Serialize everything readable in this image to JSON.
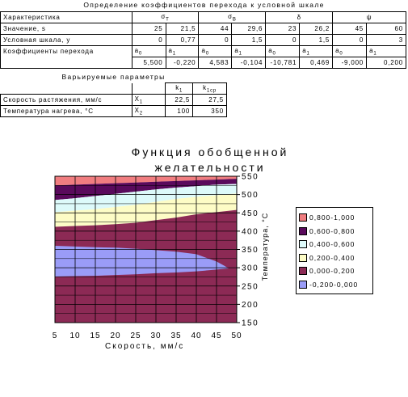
{
  "top_table": {
    "title": "Определение коэффициентов перехода к условной шкале",
    "header": {
      "label": "Характеристика",
      "col1": "σT",
      "col2": "σB",
      "col3": "δ",
      "col4": "ψ"
    },
    "row_values": {
      "label": "Значение, s",
      "cells": [
        "25",
        "21,5",
        "44",
        "29,6",
        "23",
        "26,2",
        "45",
        "60"
      ]
    },
    "row_scale": {
      "label": "Условная шкала, y",
      "cells": [
        "0",
        "0,77",
        "0",
        "1,5",
        "0",
        "1,5",
        "0",
        "3"
      ]
    },
    "row_coef": {
      "label": "Коэффициенты перехода",
      "cells": [
        "a0",
        "a1",
        "a0",
        "a1",
        "a0",
        "a1",
        "a0",
        "a1"
      ]
    },
    "row_coef_vals": {
      "cells": [
        "5,500",
        "-0,220",
        "4,583",
        "-0,104",
        "-10,781",
        "0,469",
        "-9,000",
        "0,200"
      ]
    }
  },
  "params_table": {
    "title": "Варьируемые параметры",
    "header": [
      "k1",
      "k1cp"
    ],
    "rows": [
      {
        "label": "Скорость растяжения, мм/с",
        "var": "X1",
        "v1": "22,5",
        "v2": "27,5"
      },
      {
        "label": "Температура нагрева, °С",
        "var": "X2",
        "v1": "100",
        "v2": "350"
      }
    ]
  },
  "chart_data": {
    "type": "contour",
    "title": "Функция обобщенной желательности",
    "xlabel": "Скорость, мм/с",
    "ylabel": "Температура, °С",
    "x_ticks": [
      "5",
      "10",
      "15",
      "20",
      "25",
      "30",
      "35",
      "40",
      "45",
      "50"
    ],
    "y_ticks": [
      "150",
      "200",
      "250",
      "300",
      "350",
      "400",
      "450",
      "500",
      "550"
    ],
    "xlim": [
      5,
      50
    ],
    "ylim": [
      150,
      550
    ],
    "grid": true,
    "legend_position": "right",
    "legend": [
      {
        "label": "0,800-1,000",
        "color": "#f07d80"
      },
      {
        "label": "0,600-0,800",
        "color": "#5a0a5c"
      },
      {
        "label": "0,400-0,600",
        "color": "#ddfafa"
      },
      {
        "label": "0,200-0,400",
        "color": "#fdfcc6"
      },
      {
        "label": "0,000-0,200",
        "color": "#8c2a55"
      },
      {
        "label": "-0,200-0,000",
        "color": "#9a9cf7"
      }
    ],
    "bands": [
      {
        "range": "0,800-1,000",
        "upper_y": [
          550,
          550,
          550,
          550,
          550,
          550,
          550,
          550,
          550,
          550
        ],
        "lower_y": [
          525,
          527,
          529,
          531,
          533,
          535,
          537,
          539,
          541,
          543
        ]
      },
      {
        "range": "0,600-0,800",
        "upper_y": [
          525,
          527,
          529,
          531,
          533,
          535,
          537,
          539,
          541,
          543
        ],
        "lower_y": [
          485,
          490,
          496,
          502,
          508,
          514,
          519,
          523,
          527,
          529
        ]
      },
      {
        "range": "0,400-0,600",
        "upper_y": [
          485,
          490,
          496,
          502,
          508,
          514,
          519,
          523,
          527,
          529
        ],
        "lower_y": [
          452,
          456,
          460,
          466,
          472,
          480,
          488,
          494,
          498,
          503
        ]
      },
      {
        "range": "0,200-0,400",
        "upper_y": [
          452,
          456,
          460,
          466,
          472,
          480,
          488,
          494,
          498,
          503
        ],
        "lower_y": [
          412,
          414,
          416,
          419,
          423,
          430,
          437,
          446,
          452,
          458
        ]
      },
      {
        "range": "0,000-0,200",
        "upper_y": [
          412,
          414,
          416,
          419,
          423,
          430,
          437,
          446,
          452,
          458
        ],
        "lower_y": [
          150,
          150,
          150,
          150,
          150,
          150,
          150,
          150,
          150,
          150
        ]
      }
    ],
    "negative_region": {
      "range": "-0,200-0,000",
      "x": [
        5,
        10,
        15,
        20,
        25,
        30,
        35,
        40,
        45,
        47,
        48,
        45,
        40,
        35,
        30,
        25,
        20,
        15,
        10,
        5
      ],
      "y": [
        360,
        358,
        356,
        355,
        352,
        348,
        344,
        337,
        317,
        305,
        298,
        295,
        290,
        287,
        285,
        282,
        280,
        278,
        277,
        276
      ]
    }
  }
}
